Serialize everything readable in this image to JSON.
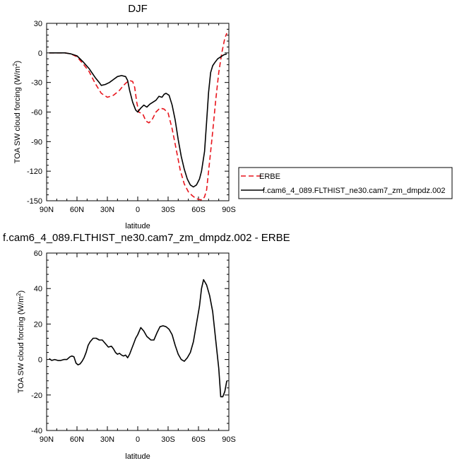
{
  "chart_data": [
    {
      "type": "line",
      "title": "DJF",
      "xlabel": "latitude",
      "ylabel": "TOA SW cloud forcing (W/m²)",
      "xlim": [
        -90,
        90
      ],
      "ylim": [
        -150,
        30
      ],
      "x_ticks": [
        -90,
        -60,
        -30,
        0,
        30,
        60,
        90
      ],
      "x_tick_labels": [
        "90N",
        "60N",
        "30N",
        "0",
        "30S",
        "60S",
        "90S"
      ],
      "y_ticks": [
        30,
        0,
        -30,
        -60,
        -90,
        -120,
        -150
      ],
      "y_tick_labels": [
        "30",
        "0",
        "-30",
        "-60",
        "-90",
        "-120",
        "-150"
      ],
      "legend": {
        "placement": "right",
        "entries": [
          "ERBE",
          "f.cam6_4_089.FLTHIST_ne30.cam7_zm_dmpdz.002"
        ]
      },
      "series": [
        {
          "name": "ERBE",
          "color": "#e8141c",
          "style": "dashed",
          "x": [
            -87.5,
            -80,
            -72,
            -66,
            -60,
            -54,
            -48,
            -42,
            -36,
            -30,
            -24,
            -18,
            -14,
            -11,
            -8,
            -5,
            -3,
            -1,
            1,
            3,
            5,
            8,
            11,
            14,
            18,
            22,
            26,
            30,
            34,
            38,
            42,
            46,
            50,
            54,
            58,
            62,
            64,
            66,
            68,
            71,
            74,
            77,
            80,
            83,
            86,
            88
          ],
          "values": [
            0,
            0,
            0,
            -1,
            -4,
            -11,
            -19,
            -31,
            -41,
            -45,
            -43,
            -38,
            -33,
            -30,
            -28,
            -29,
            -35,
            -50,
            -60,
            -61,
            -62,
            -69,
            -71,
            -68,
            -60,
            -56,
            -57,
            -61,
            -77,
            -98,
            -119,
            -133,
            -141,
            -145,
            -148,
            -149,
            -149,
            -146,
            -139,
            -110,
            -80,
            -48,
            -20,
            0,
            15,
            20
          ]
        },
        {
          "name": "f.cam6_4_089.FLTHIST_ne30.cam7_zm_dmpdz.002",
          "color": "#000000",
          "style": "solid",
          "x": [
            -87.5,
            -80,
            -72,
            -66,
            -60,
            -54,
            -48,
            -42,
            -38,
            -36,
            -32,
            -28,
            -24,
            -20,
            -16,
            -12,
            -10,
            -8,
            -5,
            -2,
            0,
            3,
            6,
            9,
            12,
            15,
            18,
            21,
            24,
            26,
            28,
            31,
            34,
            37,
            40,
            43,
            46,
            49,
            52,
            55,
            58,
            61,
            63,
            66,
            68,
            70,
            72,
            74,
            76,
            79,
            82,
            85,
            88
          ],
          "values": [
            0,
            0,
            0,
            -1,
            -3,
            -9,
            -16,
            -25,
            -30,
            -33,
            -32,
            -30,
            -27,
            -24,
            -23,
            -24,
            -28,
            -38,
            -50,
            -58,
            -60,
            -56,
            -53,
            -55,
            -52,
            -50,
            -48,
            -44,
            -45,
            -42,
            -41,
            -43,
            -53,
            -68,
            -88,
            -105,
            -118,
            -128,
            -134,
            -136,
            -134,
            -128,
            -120,
            -100,
            -70,
            -40,
            -20,
            -13,
            -10,
            -6,
            -4,
            -2,
            -1
          ]
        }
      ]
    },
    {
      "type": "line",
      "title": "f.cam6_4_089.FLTHIST_ne30.cam7_zm_dmpdz.002 - ERBE",
      "xlabel": "latitude",
      "ylabel": "TOA SW cloud forcing (W/m²)",
      "xlim": [
        -90,
        90
      ],
      "ylim": [
        -40,
        60
      ],
      "x_ticks": [
        -90,
        -60,
        -30,
        0,
        30,
        60,
        90
      ],
      "x_tick_labels": [
        "90N",
        "60N",
        "30N",
        "0",
        "30S",
        "60S",
        "90S"
      ],
      "y_ticks": [
        60,
        40,
        20,
        0,
        -20,
        -40
      ],
      "y_tick_labels": [
        "60",
        "40",
        "20",
        "0",
        "-20",
        "-40"
      ],
      "series": [
        {
          "color": "#000000",
          "style": "solid",
          "x": [
            -87.5,
            -85,
            -82,
            -79,
            -76,
            -73,
            -70,
            -67,
            -65,
            -63,
            -61,
            -59,
            -57,
            -55,
            -53,
            -51,
            -49,
            -47,
            -44,
            -41,
            -38,
            -35,
            -32,
            -29,
            -26,
            -24,
            -22,
            -20,
            -18,
            -16,
            -14,
            -12,
            -10,
            -8,
            -6,
            -4,
            -2,
            0,
            3,
            6,
            9,
            11,
            13,
            16,
            19,
            22,
            25,
            28,
            31,
            34,
            37,
            40,
            43,
            46,
            49,
            52,
            55,
            58,
            61,
            63,
            65,
            68,
            71,
            74,
            77,
            80,
            82,
            84,
            86,
            88
          ],
          "values": [
            0.5,
            -0.5,
            0,
            -0.5,
            -0.5,
            0,
            0,
            1.5,
            2,
            1.5,
            -2,
            -3,
            -2.5,
            -1,
            1,
            4,
            8,
            10,
            12,
            12,
            11,
            11,
            9,
            7,
            7.5,
            6,
            4,
            3,
            3.5,
            2.5,
            2,
            2.5,
            1,
            3,
            6,
            9,
            12,
            14,
            18,
            16,
            13,
            12,
            11,
            11,
            15,
            18.5,
            19,
            18.5,
            17,
            14,
            8,
            3,
            0,
            -1,
            1,
            4,
            10,
            20,
            30,
            40,
            45,
            42,
            36,
            27,
            11,
            -5,
            -21,
            -21,
            -18,
            -12
          ]
        }
      ]
    }
  ]
}
